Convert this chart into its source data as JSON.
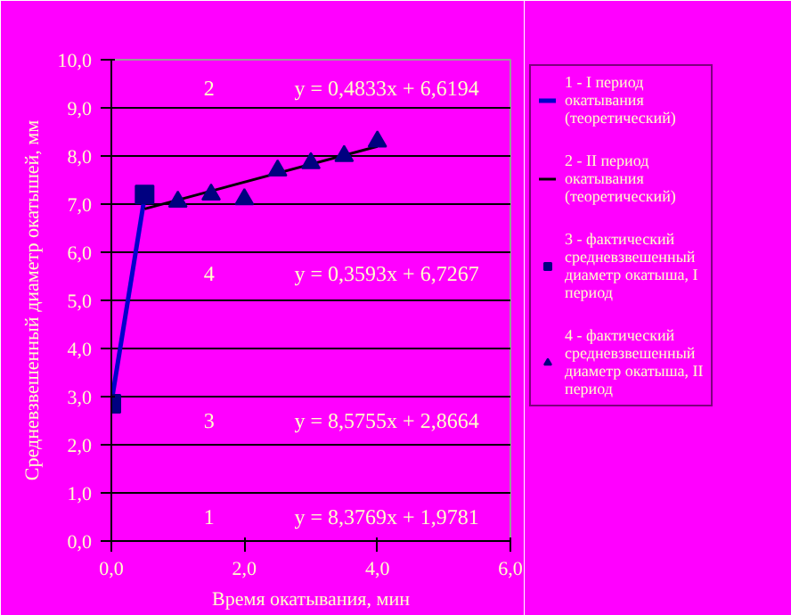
{
  "chart_data": {
    "type": "scatter",
    "xlabel": "Время окатывания, мин",
    "ylabel": "Средневзвешенный диаметр окатышей, мм",
    "xlim": [
      0,
      6
    ],
    "ylim": [
      0,
      10
    ],
    "xticks": [
      {
        "value": 0,
        "label": "0,0"
      },
      {
        "value": 2,
        "label": "2,0"
      },
      {
        "value": 4,
        "label": "4,0"
      },
      {
        "value": 6,
        "label": "6,0"
      }
    ],
    "yticks": [
      {
        "value": 0,
        "label": "0,0"
      },
      {
        "value": 1,
        "label": "1,0"
      },
      {
        "value": 2,
        "label": "2,0"
      },
      {
        "value": 3,
        "label": "3,0"
      },
      {
        "value": 4,
        "label": "4,0"
      },
      {
        "value": 5,
        "label": "5,0"
      },
      {
        "value": 6,
        "label": "6,0"
      },
      {
        "value": 7,
        "label": "7,0"
      },
      {
        "value": 8,
        "label": "8,0"
      },
      {
        "value": 9,
        "label": "9,0"
      },
      {
        "value": 10,
        "label": "10,0"
      }
    ],
    "grid": "y",
    "legend": "right",
    "series": [
      {
        "name": "1 - I период окатывания (теоретический)",
        "type": "line",
        "color": "#0000cc",
        "x": [
          0,
          0.5
        ],
        "values": [
          2.87,
          7.15
        ],
        "marker": "none"
      },
      {
        "name": "2 - II период окатывания (теоретический)",
        "type": "line",
        "color": "#000000",
        "x": [
          0.5,
          4
        ],
        "values": [
          6.9,
          8.2
        ],
        "marker": "none"
      },
      {
        "name": "3 - фактический средневзвешенный диаметр окатыша, I период",
        "color": "#000080",
        "x": [
          0,
          0.5
        ],
        "values": [
          2.85,
          7.2
        ],
        "marker": "square"
      },
      {
        "name": "4 - фактический средневзвешенный диаметр окатыша, II период",
        "color": "#000080",
        "x": [
          1,
          1.5,
          2,
          2.5,
          3,
          3.5,
          4
        ],
        "values": [
          7.05,
          7.2,
          7.1,
          7.7,
          7.85,
          8.0,
          8.3
        ],
        "marker": "triangle"
      }
    ],
    "annotations": [
      "2",
      "y = 0,4833x + 6,6194",
      "4",
      "y = 0,3593x + 6,7267",
      "3",
      "y = 8,5755x + 2,8664",
      "1",
      "y = 8,3769x + 1,9781"
    ]
  }
}
